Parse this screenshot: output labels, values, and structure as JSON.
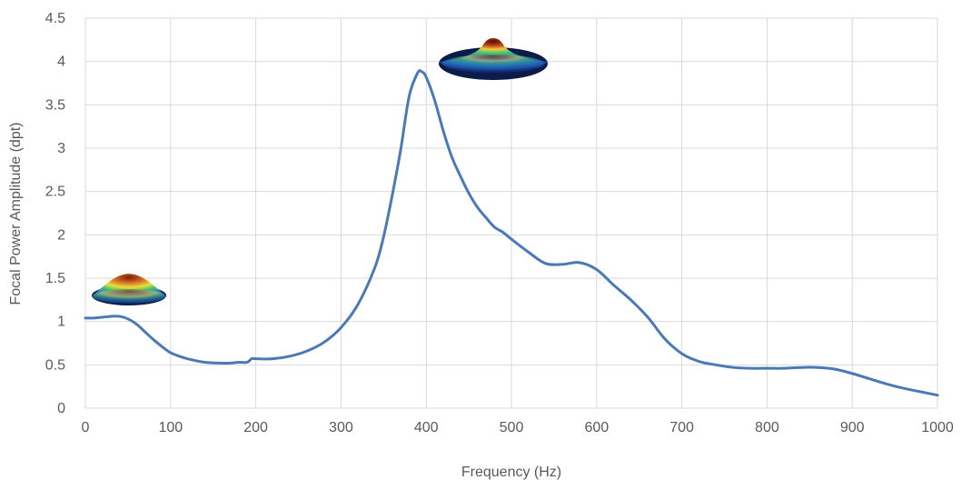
{
  "chart_data": {
    "type": "line",
    "title": "",
    "xlabel": "Frequency (Hz)",
    "ylabel": "Focal Power Amplitude (dpt)",
    "xlim": [
      0,
      1000
    ],
    "ylim": [
      0,
      4.5
    ],
    "x_ticks": [
      0,
      100,
      200,
      300,
      400,
      500,
      600,
      700,
      800,
      900,
      1000
    ],
    "y_ticks": [
      0,
      0.5,
      1,
      1.5,
      2,
      2.5,
      3,
      3.5,
      4,
      4.5
    ],
    "grid": true,
    "legend": "none",
    "series": [
      {
        "color": "#4a7ab5",
        "x": [
          0,
          10,
          20,
          30,
          40,
          50,
          60,
          70,
          80,
          90,
          100,
          110,
          120,
          140,
          160,
          170,
          180,
          190,
          195,
          200,
          220,
          240,
          260,
          280,
          300,
          320,
          340,
          350,
          360,
          370,
          380,
          390,
          395,
          400,
          410,
          420,
          430,
          440,
          450,
          460,
          470,
          480,
          490,
          500,
          520,
          540,
          560,
          580,
          600,
          620,
          640,
          660,
          680,
          700,
          720,
          740,
          760,
          780,
          800,
          820,
          840,
          860,
          880,
          900,
          920,
          940,
          960,
          980,
          1000
        ],
        "y": [
          1.04,
          1.04,
          1.05,
          1.06,
          1.06,
          1.03,
          0.97,
          0.88,
          0.79,
          0.71,
          0.64,
          0.6,
          0.57,
          0.53,
          0.52,
          0.52,
          0.53,
          0.53,
          0.57,
          0.57,
          0.57,
          0.6,
          0.66,
          0.76,
          0.93,
          1.2,
          1.63,
          1.98,
          2.45,
          2.98,
          3.6,
          3.87,
          3.88,
          3.82,
          3.55,
          3.2,
          2.9,
          2.68,
          2.48,
          2.32,
          2.2,
          2.09,
          2.03,
          1.95,
          1.8,
          1.67,
          1.66,
          1.68,
          1.6,
          1.42,
          1.25,
          1.05,
          0.8,
          0.63,
          0.54,
          0.5,
          0.47,
          0.46,
          0.46,
          0.46,
          0.47,
          0.47,
          0.45,
          0.4,
          0.34,
          0.28,
          0.23,
          0.19,
          0.15
        ]
      }
    ]
  },
  "insets": [
    {
      "icon": "mode-shape-low-frequency-icon",
      "colors": [
        "#7f1a0b",
        "#d9742a",
        "#e8e23a",
        "#3fbf7a",
        "#2a7fd1",
        "#142f8a"
      ]
    },
    {
      "icon": "mode-shape-resonance-icon",
      "colors": [
        "#7f1a0b",
        "#d9742a",
        "#e8e23a",
        "#3fbf7a",
        "#2a7fd1",
        "#142f8a"
      ]
    }
  ]
}
